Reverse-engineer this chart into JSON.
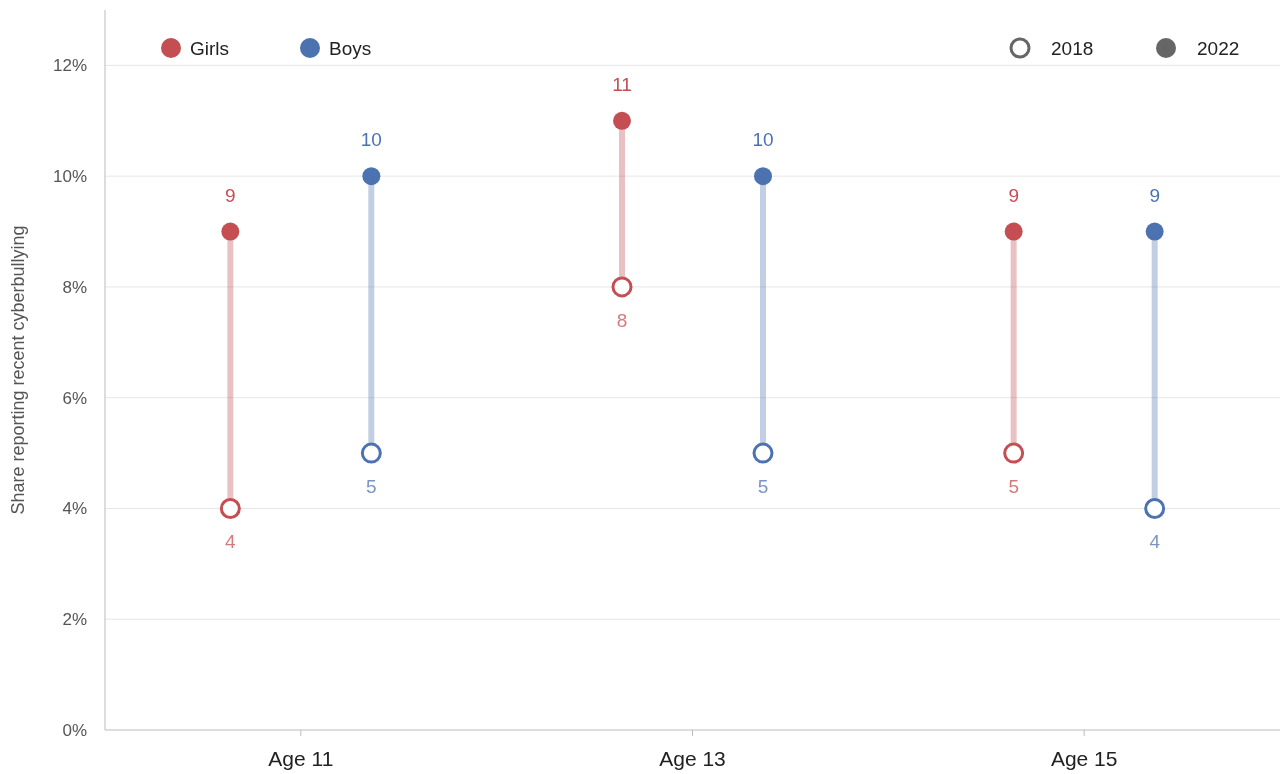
{
  "chart_data": {
    "type": "scatter",
    "ylabel": "Share reporting recent cyberbullying",
    "categories": [
      "Age 11",
      "Age 13",
      "Age 15"
    ],
    "series": [
      {
        "name": "Girls",
        "color": "#c44e52",
        "values": [
          9,
          11,
          9
        ]
      },
      {
        "name": "Boys",
        "color": "#4c72b0",
        "values": [
          10,
          10,
          9
        ]
      },
      {
        "color": "#c44e52",
        "values": [
          4,
          8,
          5
        ]
      },
      {
        "color": "#4c72b0",
        "values": [
          5,
          5,
          4
        ]
      }
    ],
    "annotations": [
      "2018",
      "2022"
    ],
    "ylim": [
      0,
      13
    ],
    "yticks": [
      {
        "value": 0,
        "label": "0%"
      },
      {
        "value": 2,
        "label": "2%"
      },
      {
        "value": 4,
        "label": "4%"
      },
      {
        "value": 6,
        "label": "6%"
      },
      {
        "value": 8,
        "label": "8%"
      },
      {
        "value": 10,
        "label": "10%"
      },
      {
        "value": 12,
        "label": "12%"
      }
    ],
    "grid": "y",
    "legend": "top left",
    "data_labels": true,
    "marker": "circle"
  }
}
